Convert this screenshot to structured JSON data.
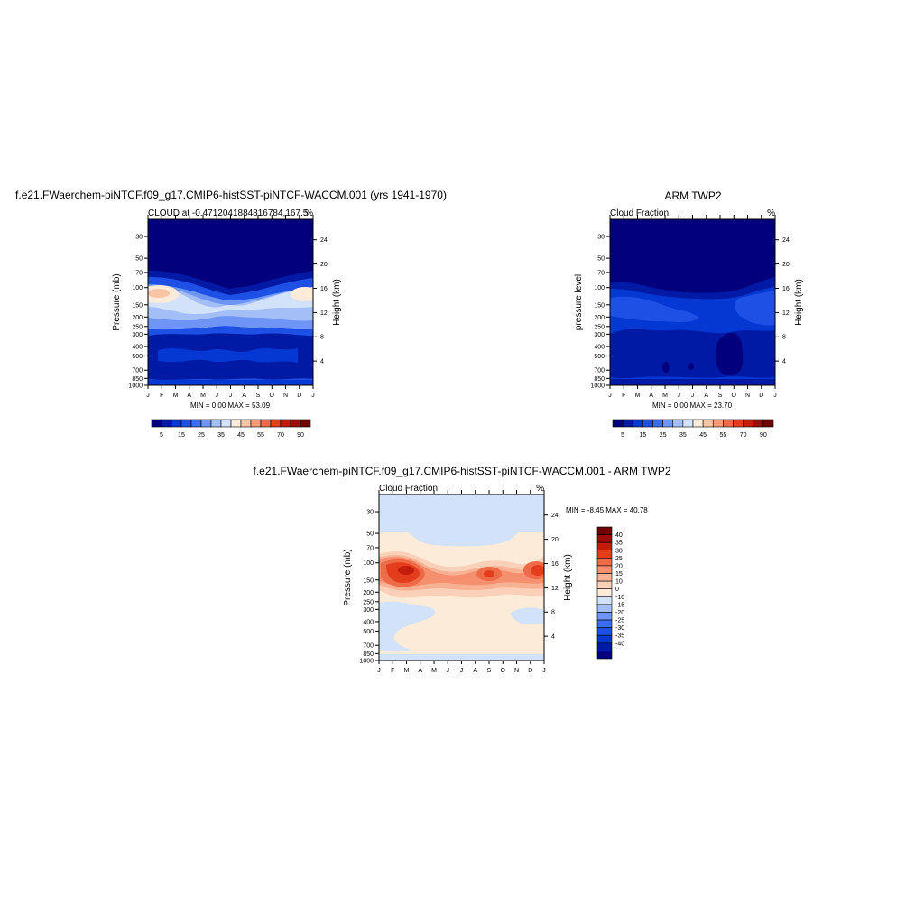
{
  "months": [
    "J",
    "F",
    "M",
    "A",
    "M",
    "J",
    "J",
    "A",
    "S",
    "O",
    "N",
    "D",
    "J"
  ],
  "palette": {
    "contours_levels_top": [
      "5",
      "15",
      "25",
      "35",
      "45",
      "55",
      "70",
      "90"
    ],
    "colors_top": [
      "#02007c",
      "#011aa6",
      "#0537d2",
      "#1e50e6",
      "#3c6cf0",
      "#6e94f5",
      "#a4bff8",
      "#d2e2fa",
      "#fdebd9",
      "#f9c3a6",
      "#f59a76",
      "#ee6b47",
      "#e33d1e",
      "#c41c0c",
      "#9a0c05",
      "#6e0301"
    ],
    "colors_diff": [
      "#02007c",
      "#011aa6",
      "#0537d2",
      "#1e50e6",
      "#3c6cf0",
      "#6e94f5",
      "#a4bff8",
      "#d2e2fa",
      "#fdebd9",
      "#fbd0b9",
      "#f9b194",
      "#f5906f",
      "#ee6b47",
      "#e33d1e",
      "#c41c0c",
      "#9a0c05",
      "#6e0301"
    ]
  },
  "panel_left": {
    "title": "f.e21.FWaerchem-piNTCF.f09_g17.CMIP6-histSST-piNTCF-WACCM.001 (yrs 1941-1970)",
    "subtitle_left": "CLOUD at -0.4712041884816784,167.5",
    "subtitle_right": "%",
    "ylabel_left": "Pressure (mb)",
    "ylabel_right": "Height (km)",
    "pressure_ticks": [
      "30",
      "50",
      "70",
      "100",
      "150",
      "200",
      "250",
      "300",
      "400",
      "500",
      "700",
      "850",
      "1000"
    ],
    "height_ticks": [
      "24",
      "20",
      "16",
      "12",
      "8",
      "4"
    ],
    "minmax": "MIN =   0.00 MAX =  53.09",
    "colorbar_labels": [
      "5",
      "15",
      "25",
      "35",
      "45",
      "55",
      "70",
      "90"
    ]
  },
  "panel_right": {
    "title": "ARM TWP2",
    "subtitle_left": "Cloud Fraction",
    "subtitle_right": "%",
    "ylabel_left": "pressure level",
    "ylabel_right": "Height (km)",
    "pressure_ticks": [
      "30",
      "50",
      "70",
      "100",
      "150",
      "200",
      "250",
      "300",
      "400",
      "500",
      "700",
      "850",
      "1000"
    ],
    "height_ticks": [
      "24",
      "20",
      "16",
      "12",
      "8",
      "4"
    ],
    "minmax": "MIN =   0.00 MAX =  23.70",
    "colorbar_labels": [
      "5",
      "15",
      "25",
      "35",
      "45",
      "55",
      "70",
      "90"
    ]
  },
  "panel_diff": {
    "title": "f.e21.FWaerchem-piNTCF.f09_g17.CMIP6-histSST-piNTCF-WACCM.001 - ARM TWP2",
    "subtitle_left": "Cloud Fraction",
    "subtitle_right": "%",
    "ylabel_left": "Pressure (mb)",
    "ylabel_right": "Height (km)",
    "pressure_ticks": [
      "30",
      "50",
      "70",
      "100",
      "150",
      "200",
      "250",
      "300",
      "400",
      "500",
      "700",
      "850",
      "1000"
    ],
    "height_ticks": [
      "24",
      "20",
      "16",
      "12",
      "8",
      "4"
    ],
    "minmax": "MIN =  -8.45 MAX =  40.78",
    "colorbar_labels": [
      "40",
      "35",
      "30",
      "25",
      "20",
      "15",
      "10",
      "0",
      "-10",
      "-15",
      "-20",
      "-25",
      "-30",
      "-35",
      "-40"
    ]
  },
  "chart_data": [
    {
      "type": "heatmap",
      "title": "f.e21.FWaerchem-piNTCF.f09_g17.CMIP6-histSST-piNTCF-WACCM.001 (yrs 1941-1970)",
      "subtitle": "CLOUD at -0.4712041884816784,167.5",
      "xlabel": "",
      "ylabel": "Pressure (mb)",
      "ylabel_right": "Height (km)",
      "x": [
        "J",
        "F",
        "M",
        "A",
        "M",
        "J",
        "J",
        "A",
        "S",
        "O",
        "N",
        "D",
        "J"
      ],
      "y_pressure": [
        30,
        50,
        70,
        100,
        150,
        200,
        250,
        300,
        400,
        500,
        700,
        850,
        1000
      ],
      "min": 0.0,
      "max": 53.09,
      "levels": [
        5,
        10,
        15,
        20,
        25,
        30,
        35,
        40,
        45,
        50,
        55,
        60,
        70,
        80,
        90
      ],
      "notes": "cloud near 0 above ~80 mb; maximum ~45-53% near 130 mb in Jan-Feb and Nov-Dec; ~20-30% between 130-250 mb; 10-20% below 300 mb"
    },
    {
      "type": "heatmap",
      "title": "ARM TWP2",
      "subtitle": "Cloud Fraction",
      "xlabel": "",
      "ylabel": "pressure level",
      "ylabel_right": "Height (km)",
      "x": [
        "J",
        "F",
        "M",
        "A",
        "M",
        "J",
        "J",
        "A",
        "S",
        "O",
        "N",
        "D",
        "J"
      ],
      "y_pressure": [
        30,
        50,
        70,
        100,
        150,
        200,
        250,
        300,
        400,
        500,
        700,
        850,
        1000
      ],
      "min": 0.0,
      "max": 23.7,
      "levels": [
        5,
        10,
        15,
        20,
        25,
        30,
        35,
        40,
        45,
        50,
        55,
        60,
        70,
        80,
        90
      ],
      "notes": "cloud near 0 above ~100 mb; mostly 10-20% below 150 mb with minimum 0-5% areas near 400-700 mb Sep-Oct"
    },
    {
      "type": "heatmap",
      "title": "f.e21.FWaerchem-piNTCF.f09_g17.CMIP6-histSST-piNTCF-WACCM.001 - ARM TWP2",
      "subtitle": "Cloud Fraction",
      "xlabel": "",
      "ylabel": "Pressure (mb)",
      "ylabel_right": "Height (km)",
      "x": [
        "J",
        "F",
        "M",
        "A",
        "M",
        "J",
        "J",
        "A",
        "S",
        "O",
        "N",
        "D",
        "J"
      ],
      "y_pressure": [
        30,
        50,
        70,
        100,
        150,
        200,
        250,
        300,
        400,
        500,
        700,
        850,
        1000
      ],
      "min": -8.45,
      "max": 40.78,
      "levels": [
        -40,
        -35,
        -30,
        -25,
        -20,
        -15,
        -10,
        0,
        10,
        15,
        20,
        25,
        30,
        35,
        40
      ],
      "notes": "positive maxima ~35-40 near 130 mb in Mar, Sep and Dec; slightly negative (-10..0) above 50 mb and in patches near 300-500 mb"
    }
  ]
}
